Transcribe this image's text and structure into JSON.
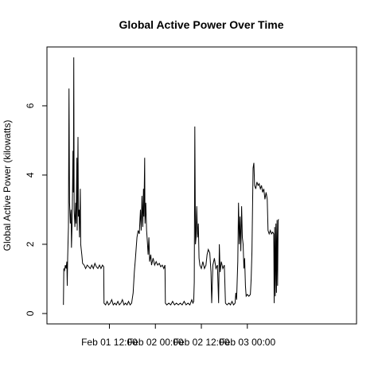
{
  "chart_data": {
    "type": "line",
    "title": "Global Active Power Over Time",
    "xlabel": "",
    "ylabel": "Global Active Power (kilowatts)",
    "x_hours_start": 0,
    "x_hours_end": 72,
    "xlim_hours": [
      -4.3,
      76.5
    ],
    "ylim": [
      -0.3,
      7.7
    ],
    "x_ticks": [
      {
        "hours": 12,
        "label": "Feb 01 12:00"
      },
      {
        "hours": 24,
        "label": "Feb 02 00:00"
      },
      {
        "hours": 36,
        "label": "Feb 02 12:00"
      },
      {
        "hours": 48,
        "label": "Feb 03 00:00"
      }
    ],
    "y_ticks": [
      0,
      2,
      4,
      6
    ],
    "grid": false,
    "line_color": "#000000",
    "series": [
      {
        "name": "",
        "points": [
          [
            0.0,
            0.25
          ],
          [
            0.1,
            1.3
          ],
          [
            0.3,
            1.25
          ],
          [
            0.5,
            1.4
          ],
          [
            0.7,
            1.3
          ],
          [
            0.9,
            1.5
          ],
          [
            1.0,
            0.8
          ],
          [
            1.1,
            1.6
          ],
          [
            1.3,
            2.5
          ],
          [
            1.45,
            6.5
          ],
          [
            1.6,
            3.2
          ],
          [
            1.8,
            2.6
          ],
          [
            2.0,
            3.0
          ],
          [
            2.1,
            1.9
          ],
          [
            2.3,
            2.8
          ],
          [
            2.5,
            4.7
          ],
          [
            2.6,
            3.5
          ],
          [
            2.7,
            7.4
          ],
          [
            2.8,
            3.0
          ],
          [
            3.0,
            2.5
          ],
          [
            3.2,
            3.2
          ],
          [
            3.3,
            2.6
          ],
          [
            3.5,
            4.5
          ],
          [
            3.6,
            2.4
          ],
          [
            3.8,
            5.1
          ],
          [
            3.9,
            2.8
          ],
          [
            4.1,
            3.0
          ],
          [
            4.2,
            2.2
          ],
          [
            4.4,
            3.6
          ],
          [
            4.5,
            2.0
          ],
          [
            4.8,
            1.7
          ],
          [
            5.0,
            1.45
          ],
          [
            5.4,
            1.4
          ],
          [
            5.8,
            1.3
          ],
          [
            6.2,
            1.4
          ],
          [
            6.6,
            1.35
          ],
          [
            7.0,
            1.3
          ],
          [
            7.4,
            1.4
          ],
          [
            7.8,
            1.3
          ],
          [
            8.2,
            1.45
          ],
          [
            8.6,
            1.35
          ],
          [
            9.0,
            1.3
          ],
          [
            9.4,
            1.4
          ],
          [
            9.8,
            1.3
          ],
          [
            10.2,
            1.4
          ],
          [
            10.5,
            1.35
          ],
          [
            10.6,
            0.3
          ],
          [
            11.0,
            0.25
          ],
          [
            11.4,
            0.35
          ],
          [
            11.8,
            0.25
          ],
          [
            12.2,
            0.3
          ],
          [
            12.6,
            0.4
          ],
          [
            13.0,
            0.25
          ],
          [
            13.4,
            0.3
          ],
          [
            13.8,
            0.25
          ],
          [
            14.2,
            0.35
          ],
          [
            14.6,
            0.25
          ],
          [
            15.0,
            0.3
          ],
          [
            15.4,
            0.4
          ],
          [
            15.8,
            0.25
          ],
          [
            16.2,
            0.3
          ],
          [
            16.6,
            0.25
          ],
          [
            17.0,
            0.35
          ],
          [
            17.4,
            0.25
          ],
          [
            17.8,
            0.3
          ],
          [
            18.2,
            0.6
          ],
          [
            18.5,
            1.2
          ],
          [
            18.8,
            1.6
          ],
          [
            19.2,
            2.2
          ],
          [
            19.5,
            2.4
          ],
          [
            19.8,
            2.3
          ],
          [
            20.1,
            3.0
          ],
          [
            20.3,
            2.4
          ],
          [
            20.5,
            3.4
          ],
          [
            20.7,
            2.5
          ],
          [
            20.9,
            3.6
          ],
          [
            21.0,
            2.8
          ],
          [
            21.2,
            4.5
          ],
          [
            21.3,
            2.6
          ],
          [
            21.5,
            3.2
          ],
          [
            21.7,
            2.4
          ],
          [
            21.9,
            2.1
          ],
          [
            22.1,
            1.7
          ],
          [
            22.3,
            2.2
          ],
          [
            22.5,
            1.5
          ],
          [
            22.8,
            1.7
          ],
          [
            23.0,
            1.4
          ],
          [
            23.4,
            1.6
          ],
          [
            23.8,
            1.4
          ],
          [
            24.2,
            1.5
          ],
          [
            24.6,
            1.4
          ],
          [
            25.0,
            1.45
          ],
          [
            25.4,
            1.35
          ],
          [
            25.8,
            1.4
          ],
          [
            26.2,
            1.3
          ],
          [
            26.5,
            1.4
          ],
          [
            26.6,
            0.3
          ],
          [
            27.0,
            0.25
          ],
          [
            27.5,
            0.3
          ],
          [
            28.0,
            0.25
          ],
          [
            28.5,
            0.35
          ],
          [
            29.0,
            0.25
          ],
          [
            29.5,
            0.3
          ],
          [
            30.0,
            0.25
          ],
          [
            30.5,
            0.3
          ],
          [
            31.0,
            0.25
          ],
          [
            31.5,
            0.35
          ],
          [
            32.0,
            0.25
          ],
          [
            32.5,
            0.3
          ],
          [
            33.0,
            0.25
          ],
          [
            33.5,
            0.4
          ],
          [
            33.8,
            0.3
          ],
          [
            34.0,
            0.35
          ],
          [
            34.15,
            0.9
          ],
          [
            34.3,
            5.4
          ],
          [
            34.45,
            2.0
          ],
          [
            34.6,
            2.2
          ],
          [
            34.8,
            3.1
          ],
          [
            35.0,
            2.2
          ],
          [
            35.2,
            2.6
          ],
          [
            35.4,
            1.6
          ],
          [
            35.6,
            1.4
          ],
          [
            36.0,
            1.3
          ],
          [
            36.4,
            1.5
          ],
          [
            36.8,
            1.3
          ],
          [
            37.2,
            1.4
          ],
          [
            37.5,
            1.7
          ],
          [
            37.8,
            1.85
          ],
          [
            38.2,
            1.75
          ],
          [
            38.5,
            1.2
          ],
          [
            38.7,
            0.3
          ],
          [
            39.0,
            1.4
          ],
          [
            39.4,
            1.6
          ],
          [
            39.8,
            1.3
          ],
          [
            40.2,
            1.4
          ],
          [
            40.5,
            0.3
          ],
          [
            40.7,
            2.0
          ],
          [
            40.9,
            1.2
          ],
          [
            41.2,
            1.5
          ],
          [
            41.6,
            1.3
          ],
          [
            42.0,
            1.4
          ],
          [
            42.3,
            0.3
          ],
          [
            42.7,
            0.25
          ],
          [
            43.2,
            0.3
          ],
          [
            43.6,
            0.25
          ],
          [
            44.0,
            0.35
          ],
          [
            44.4,
            0.25
          ],
          [
            44.8,
            0.3
          ],
          [
            45.0,
            0.6
          ],
          [
            45.2,
            0.4
          ],
          [
            45.5,
            1.5
          ],
          [
            45.7,
            3.2
          ],
          [
            45.9,
            2.0
          ],
          [
            46.1,
            2.8
          ],
          [
            46.3,
            1.8
          ],
          [
            46.5,
            3.1
          ],
          [
            46.7,
            2.2
          ],
          [
            46.9,
            2.0
          ],
          [
            47.1,
            1.3
          ],
          [
            47.3,
            1.6
          ],
          [
            47.5,
            0.8
          ],
          [
            47.7,
            0.5
          ],
          [
            48.0,
            0.55
          ],
          [
            48.4,
            0.5
          ],
          [
            48.8,
            0.55
          ],
          [
            49.0,
            1.0
          ],
          [
            49.2,
            1.8
          ],
          [
            49.35,
            3.0
          ],
          [
            49.5,
            4.2
          ],
          [
            49.7,
            4.35
          ],
          [
            49.9,
            3.7
          ],
          [
            50.2,
            3.6
          ],
          [
            50.5,
            3.8
          ],
          [
            50.8,
            3.7
          ],
          [
            51.1,
            3.75
          ],
          [
            51.4,
            3.6
          ],
          [
            51.7,
            3.7
          ],
          [
            52.0,
            3.5
          ],
          [
            52.3,
            3.6
          ],
          [
            52.6,
            3.3
          ],
          [
            52.9,
            3.5
          ],
          [
            53.2,
            3.3
          ],
          [
            53.4,
            2.4
          ],
          [
            53.7,
            2.3
          ],
          [
            54.0,
            2.4
          ],
          [
            54.3,
            2.3
          ],
          [
            54.6,
            2.35
          ],
          [
            54.9,
            2.3
          ],
          [
            55.0,
            0.3
          ],
          [
            55.15,
            2.5
          ],
          [
            55.3,
            0.5
          ],
          [
            55.45,
            2.6
          ],
          [
            55.6,
            0.6
          ],
          [
            55.75,
            2.7
          ],
          [
            55.9,
            0.8
          ],
          [
            56.05,
            2.7
          ],
          [
            56.2,
            2.72
          ]
        ]
      }
    ]
  }
}
